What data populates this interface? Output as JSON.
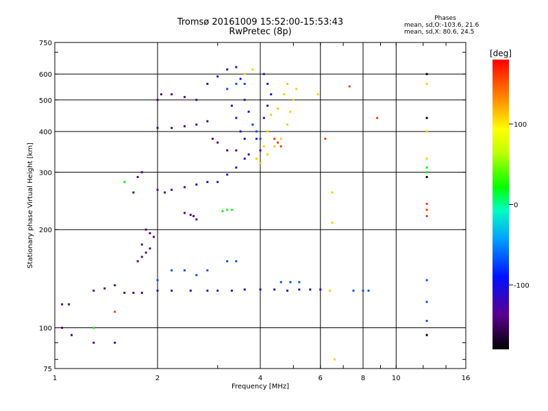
{
  "header": {
    "title_line1": "Tromsø 20161009 15:52:00-15:53:43",
    "title_line2": "RwPretec (8p)",
    "phases_title": "Phases",
    "phases_o": "mean, sd,O:-103.6, 21.6",
    "phases_x": "mean, sd,X:  80.6, 24.5"
  },
  "chart_data": {
    "type": "scatter",
    "xlabel": "Frequency [MHz]",
    "ylabel": "Stationary phase Virtual Height [km]",
    "x_scale": "log",
    "y_scale": "log",
    "xlim": [
      1,
      16
    ],
    "ylim": [
      75,
      750
    ],
    "x_ticks": [
      1,
      2,
      4,
      6,
      8,
      10,
      16
    ],
    "y_ticks": [
      75,
      100,
      200,
      300,
      400,
      500,
      600,
      750
    ],
    "grid": true,
    "colorbar": {
      "label": "[deg]",
      "range": [
        -180,
        180
      ],
      "ticks": [
        -100,
        0,
        100
      ]
    },
    "series": [
      {
        "color_value": -140,
        "points": [
          [
            1.05,
            100
          ],
          [
            1.12,
            95
          ],
          [
            1.3,
            90
          ],
          [
            1.5,
            90
          ],
          [
            1.05,
            118
          ],
          [
            1.1,
            118
          ],
          [
            1.3,
            130
          ],
          [
            1.4,
            132
          ],
          [
            1.5,
            135
          ],
          [
            1.6,
            128
          ],
          [
            1.7,
            128
          ],
          [
            1.8,
            128
          ],
          [
            1.75,
            160
          ],
          [
            1.8,
            165
          ],
          [
            1.85,
            170
          ],
          [
            1.9,
            175
          ],
          [
            1.8,
            180
          ],
          [
            1.85,
            200
          ],
          [
            1.9,
            195
          ],
          [
            1.95,
            190
          ],
          [
            1.7,
            260
          ],
          [
            1.75,
            290
          ],
          [
            1.8,
            300
          ],
          [
            2.0,
            265
          ],
          [
            2.1,
            260
          ],
          [
            2.2,
            265
          ],
          [
            2.4,
            270
          ],
          [
            2.05,
            520
          ],
          [
            2.2,
            520
          ],
          [
            2.4,
            510
          ],
          [
            2.6,
            500
          ],
          [
            2.0,
            500
          ],
          [
            2.0,
            410
          ],
          [
            2.2,
            410
          ],
          [
            2.4,
            415
          ],
          [
            2.6,
            420
          ],
          [
            2.8,
            430
          ],
          [
            2.9,
            380
          ],
          [
            3.0,
            370
          ],
          [
            3.2,
            350
          ],
          [
            3.4,
            350
          ],
          [
            2.4,
            225
          ],
          [
            2.5,
            222
          ],
          [
            2.55,
            220
          ],
          [
            2.6,
            215
          ]
        ]
      },
      {
        "color_value": -110,
        "points": [
          [
            2.8,
            560
          ],
          [
            3.0,
            590
          ],
          [
            3.2,
            620
          ],
          [
            3.4,
            630
          ],
          [
            3.5,
            580
          ],
          [
            3.6,
            500
          ],
          [
            3.7,
            460
          ],
          [
            3.8,
            420
          ],
          [
            3.9,
            380
          ],
          [
            4.0,
            350
          ],
          [
            3.3,
            480
          ],
          [
            3.4,
            440
          ],
          [
            3.5,
            400
          ],
          [
            3.6,
            380
          ],
          [
            3.7,
            340
          ],
          [
            3.0,
            280
          ],
          [
            3.2,
            295
          ],
          [
            3.4,
            310
          ],
          [
            3.6,
            330
          ],
          [
            2.6,
            275
          ],
          [
            2.8,
            280
          ],
          [
            2.0,
            130
          ],
          [
            2.2,
            130
          ],
          [
            2.5,
            130
          ],
          [
            2.8,
            130
          ],
          [
            3.0,
            130
          ],
          [
            3.3,
            130
          ],
          [
            3.6,
            131
          ],
          [
            4.0,
            131
          ],
          [
            4.4,
            131
          ],
          [
            4.8,
            130
          ],
          [
            5.2,
            131
          ],
          [
            5.6,
            131
          ],
          [
            6.0,
            131
          ],
          [
            4.1,
            440
          ],
          [
            4.2,
            480
          ],
          [
            4.3,
            520
          ],
          [
            4.1,
            600
          ],
          [
            4.2,
            560
          ]
        ]
      },
      {
        "color_value": -70,
        "points": [
          [
            2.0,
            140
          ],
          [
            2.2,
            150
          ],
          [
            2.4,
            150
          ],
          [
            2.6,
            145
          ],
          [
            2.8,
            150
          ],
          [
            3.2,
            160
          ],
          [
            3.4,
            160
          ],
          [
            4.6,
            138
          ],
          [
            4.9,
            138
          ],
          [
            5.2,
            138
          ],
          [
            7.5,
            130
          ],
          [
            8.0,
            130
          ],
          [
            8.3,
            130
          ],
          [
            3.2,
            540
          ],
          [
            3.4,
            560
          ],
          [
            3.6,
            560
          ],
          [
            3.8,
            420
          ],
          [
            3.9,
            400
          ],
          [
            4.0,
            380
          ],
          [
            12.3,
            140
          ],
          [
            12.3,
            120
          ],
          [
            12.3,
            105
          ]
        ]
      },
      {
        "color_value": 20,
        "points": [
          [
            3.1,
            228
          ],
          [
            3.2,
            230
          ],
          [
            3.3,
            230
          ],
          [
            12.3,
            300
          ],
          [
            12.3,
            310
          ],
          [
            1.6,
            280
          ],
          [
            1.3,
            100
          ]
        ]
      },
      {
        "color_value": 110,
        "points": [
          [
            3.6,
            600
          ],
          [
            3.8,
            620
          ],
          [
            4.0,
            320
          ],
          [
            4.2,
            340
          ],
          [
            4.4,
            360
          ],
          [
            4.6,
            380
          ],
          [
            4.8,
            420
          ],
          [
            4.9,
            460
          ],
          [
            5.0,
            500
          ],
          [
            5.1,
            540
          ],
          [
            4.3,
            450
          ],
          [
            4.5,
            470
          ],
          [
            4.7,
            520
          ],
          [
            4.8,
            560
          ],
          [
            4.2,
            400
          ],
          [
            3.9,
            330
          ],
          [
            4.1,
            360
          ],
          [
            12.3,
            400
          ],
          [
            12.3,
            560
          ],
          [
            12.3,
            330
          ],
          [
            6.5,
            260
          ],
          [
            6.5,
            210
          ],
          [
            6.6,
            80
          ],
          [
            5.9,
            520
          ],
          [
            6.4,
            130
          ]
        ]
      },
      {
        "color_value": 160,
        "points": [
          [
            4.4,
            380
          ],
          [
            4.5,
            370
          ],
          [
            4.6,
            360
          ],
          [
            6.2,
            380
          ],
          [
            7.3,
            550
          ],
          [
            8.8,
            440
          ],
          [
            1.5,
            112
          ],
          [
            12.3,
            240
          ],
          [
            12.3,
            220
          ],
          [
            12.3,
            230
          ]
        ]
      },
      {
        "color_value": -180,
        "points": [
          [
            12.3,
            440
          ],
          [
            12.3,
            290
          ],
          [
            12.3,
            95
          ],
          [
            12.3,
            600
          ]
        ]
      }
    ]
  }
}
